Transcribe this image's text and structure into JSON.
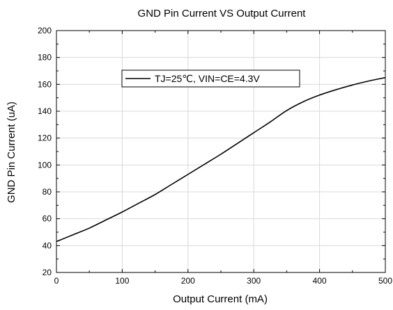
{
  "chart_data": {
    "type": "line",
    "title": "GND Pin Current VS Output Current",
    "xlabel": "Output Current (mA)",
    "ylabel": "GND Pin Current (uA)",
    "xlim": [
      0,
      500
    ],
    "ylim": [
      20,
      200
    ],
    "x_ticks": [
      "0",
      "100",
      "200",
      "300",
      "400",
      "500"
    ],
    "y_ticks": [
      "20",
      "40",
      "60",
      "80",
      "100",
      "120",
      "140",
      "160",
      "180",
      "200"
    ],
    "grid": true,
    "legend_position": "top-left",
    "colors": {
      "line": "#000000",
      "grid": "#d9d9d9",
      "axis": "#000000"
    },
    "series": [
      {
        "name": "TJ=25℃, VIN=CE=4.3V",
        "x": [
          0,
          25,
          50,
          75,
          100,
          125,
          150,
          175,
          200,
          225,
          250,
          275,
          300,
          325,
          350,
          375,
          400,
          425,
          450,
          475,
          500
        ],
        "y": [
          43,
          48,
          53,
          59,
          65,
          71.5,
          78,
          85.5,
          93,
          100.5,
          108,
          116,
          124,
          132,
          140.5,
          147,
          152,
          156,
          159.5,
          162.5,
          165
        ]
      }
    ]
  }
}
